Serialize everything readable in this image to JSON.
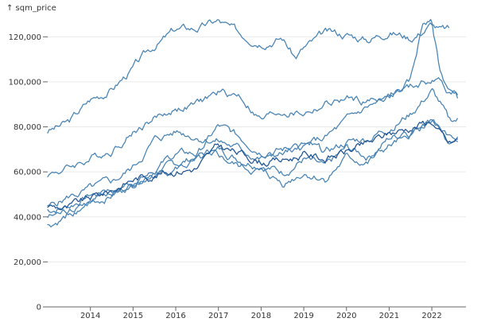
{
  "chart_data": {
    "type": "line",
    "ylabel": "↑ sqm_price",
    "y_ticks": [
      "0",
      "20,000",
      "40,000",
      "60,000",
      "80,000",
      "100,000",
      "120,000"
    ],
    "y_tick_values": [
      0,
      20000,
      40000,
      60000,
      80000,
      100000,
      120000
    ],
    "x_ticks": [
      "2014",
      "2015",
      "2016",
      "2017",
      "2018",
      "2019",
      "2020",
      "2021",
      "2022"
    ],
    "x_tick_values": [
      2014,
      2015,
      2016,
      2017,
      2018,
      2019,
      2020,
      2021,
      2022
    ],
    "xlim": [
      2013.0,
      2022.8
    ],
    "ylim": [
      0,
      130000
    ],
    "grid": "horizontal",
    "colors": {
      "series": "#4682b4",
      "series_dark": "#1f5493",
      "grid": "#e9e9e9",
      "axis": "#666666",
      "text": "#333333"
    },
    "series": [
      {
        "x": [
          2013.0,
          2013.5,
          2014.0,
          2014.5,
          2015.0,
          2015.5,
          2016.0,
          2016.5,
          2017.0,
          2017.5,
          2018.0,
          2018.5,
          2018.8,
          2019.0,
          2019.5,
          2020.0,
          2020.5,
          2021.0,
          2021.5,
          2021.7,
          2022.0,
          2022.2,
          2022.4
        ],
        "y": [
          78000,
          82000,
          92000,
          97000,
          106000,
          116000,
          123000,
          124000,
          127000,
          121000,
          119000,
          120000,
          111000,
          115000,
          121000,
          121000,
          119000,
          123000,
          120000,
          122000,
          126000,
          123000,
          123000
        ]
      },
      {
        "x": [
          2013.0,
          2013.5,
          2014.0,
          2014.5,
          2015.0,
          2015.5,
          2016.0,
          2016.5,
          2017.0,
          2017.5,
          2018.0,
          2018.5,
          2019.0,
          2019.5,
          2020.0,
          2020.5,
          2021.0,
          2021.5,
          2022.0,
          2022.2,
          2022.4,
          2022.6
        ],
        "y": [
          59000,
          62000,
          66000,
          70000,
          78000,
          84000,
          88000,
          90000,
          95000,
          94000,
          83000,
          87000,
          86000,
          90000,
          92000,
          91000,
          94000,
          97000,
          101000,
          100000,
          96000,
          95000
        ]
      },
      {
        "x": [
          2013.0,
          2013.5,
          2014.0,
          2014.5,
          2015.0,
          2015.5,
          2016.0,
          2016.5,
          2017.0,
          2017.5,
          2018.0,
          2018.5,
          2019.0,
          2019.5,
          2020.0,
          2020.5,
          2021.0,
          2021.5,
          2021.8,
          2022.0,
          2022.2,
          2022.4,
          2022.6
        ],
        "y": [
          44000,
          49000,
          52000,
          55000,
          62000,
          74000,
          78000,
          76000,
          74000,
          70000,
          66000,
          68000,
          71000,
          75000,
          82000,
          89000,
          92000,
          100000,
          127000,
          126000,
          104000,
          97000,
          93000
        ]
      },
      {
        "x": [
          2013.0,
          2013.5,
          2014.0,
          2014.5,
          2015.0,
          2015.5,
          2016.0,
          2016.5,
          2017.0,
          2017.5,
          2018.0,
          2018.5,
          2019.0,
          2019.5,
          2020.0,
          2020.5,
          2021.0,
          2021.5,
          2022.0,
          2022.2,
          2022.4,
          2022.6
        ],
        "y": [
          36000,
          41000,
          46000,
          50000,
          55000,
          62000,
          68000,
          68000,
          80000,
          75000,
          70000,
          70000,
          72000,
          68000,
          73000,
          75000,
          80000,
          86000,
          96000,
          90000,
          82000,
          83000
        ]
      },
      {
        "x": [
          2013.0,
          2013.5,
          2014.0,
          2014.5,
          2015.0,
          2015.5,
          2016.0,
          2016.5,
          2017.0,
          2017.5,
          2018.0,
          2018.5,
          2019.0,
          2019.5,
          2020.0,
          2020.5,
          2021.0,
          2021.5,
          2022.0,
          2022.2,
          2022.4,
          2022.6
        ],
        "y": [
          43000,
          45000,
          50000,
          51000,
          56000,
          60000,
          63000,
          67000,
          70000,
          66000,
          64000,
          60000,
          66000,
          61000,
          70000,
          67000,
          75000,
          78000,
          85000,
          80000,
          74000,
          76000
        ]
      },
      {
        "x": [
          2013.0,
          2013.5,
          2014.0,
          2014.5,
          2015.0,
          2015.5,
          2016.0,
          2016.5,
          2017.0,
          2017.5,
          2018.0,
          2018.5,
          2019.0,
          2019.5,
          2020.0,
          2020.5,
          2021.0,
          2021.5,
          2022.0,
          2022.2,
          2022.4,
          2022.6
        ],
        "y": [
          40000,
          42000,
          47000,
          50000,
          53000,
          58000,
          62000,
          64000,
          66000,
          62000,
          60000,
          55000,
          60000,
          57000,
          66000,
          64000,
          71000,
          76000,
          83000,
          78000,
          70000,
          70000
        ]
      },
      {
        "x": [
          2013.0,
          2013.5,
          2014.0,
          2014.5,
          2015.0,
          2015.5,
          2016.0,
          2016.5,
          2017.0,
          2017.5,
          2018.0,
          2018.5,
          2019.0,
          2019.5,
          2020.0,
          2020.5,
          2021.0,
          2021.5,
          2022.0,
          2022.2,
          2022.4,
          2022.6
        ],
        "y": [
          45000,
          44000,
          48000,
          52000,
          57000,
          59000,
          61000,
          62000,
          71000,
          68000,
          65000,
          65000,
          68000,
          66000,
          69000,
          72000,
          77000,
          80000,
          83000,
          77000,
          72000,
          74000
        ],
        "dark": true
      }
    ]
  }
}
